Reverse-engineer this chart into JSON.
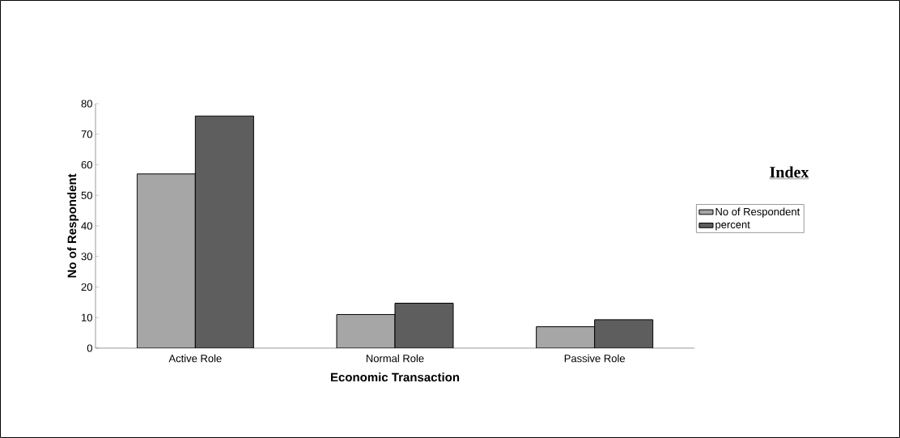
{
  "chart_data": {
    "type": "bar",
    "xlabel": "Economic Transaction",
    "ylabel": "No of Respondent",
    "legend_title": "Index",
    "categories": [
      "Active Role",
      "Normal Role",
      "Passive Role"
    ],
    "series": [
      {
        "name": "No of Respondent",
        "color": "#a6a6a6",
        "values": [
          57,
          11,
          7
        ]
      },
      {
        "name": "percent",
        "color": "#5e5e5e",
        "values": [
          76,
          14.7,
          9.3
        ]
      }
    ],
    "ylim": [
      0,
      80
    ],
    "yticks": [
      0,
      10,
      20,
      30,
      40,
      50,
      60,
      70,
      80
    ],
    "legend": "right"
  }
}
